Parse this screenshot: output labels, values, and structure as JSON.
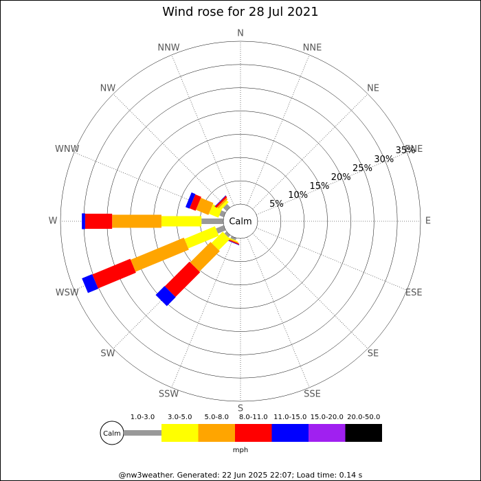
{
  "chart_data": {
    "type": "wind_rose",
    "title": "Wind rose for 28 Jul 2021",
    "directions": [
      "N",
      "NNE",
      "NE",
      "ENE",
      "E",
      "ESE",
      "SE",
      "SSE",
      "S",
      "SSW",
      "SW",
      "WSW",
      "W",
      "WNW",
      "NW",
      "NNW"
    ],
    "rlim": [
      0,
      35
    ],
    "rticks": [
      {
        "value": 5,
        "label": "5%"
      },
      {
        "value": 10,
        "label": "10%"
      },
      {
        "value": 15,
        "label": "15%"
      },
      {
        "value": 20,
        "label": "20%"
      },
      {
        "value": 25,
        "label": "25%"
      },
      {
        "value": 30,
        "label": "30%"
      },
      {
        "value": 35,
        "label": "35%"
      }
    ],
    "calm_label": "Calm",
    "series": [
      {
        "name": "1.0-3.0",
        "color": "#999999",
        "values": [
          0,
          0,
          0,
          0,
          0,
          0,
          0,
          0,
          0,
          0.5,
          0.6,
          1.8,
          4.7,
          1.0,
          1.0,
          0
        ]
      },
      {
        "name": "3.0-5.0",
        "color": "#ffff00",
        "values": [
          0,
          0,
          0,
          0,
          0,
          0,
          0,
          0,
          0,
          0.2,
          3.4,
          7.1,
          8.6,
          2.2,
          0.6,
          0
        ]
      },
      {
        "name": "5.0-8.0",
        "color": "#ffa500",
        "values": [
          0,
          0,
          0,
          0,
          0,
          0,
          0,
          0,
          0,
          0.2,
          6.2,
          12.4,
          10.6,
          2.9,
          0.4,
          0
        ]
      },
      {
        "name": "8.0-11.0",
        "color": "#ff0000",
        "values": [
          0,
          0,
          0,
          0,
          0,
          0,
          0,
          0,
          0,
          0.2,
          7.5,
          8.8,
          5.8,
          1.4,
          0.4,
          0
        ]
      },
      {
        "name": "11.0-15.0",
        "color": "#0000ff",
        "values": [
          0,
          0,
          0,
          0,
          0,
          0,
          0,
          0,
          0,
          0.1,
          2.7,
          2.4,
          0.7,
          0.9,
          0.1,
          0
        ]
      },
      {
        "name": "15.0-20.0",
        "color": "#a020f0",
        "values": [
          0,
          0,
          0,
          0,
          0,
          0,
          0,
          0,
          0,
          0,
          0,
          0,
          0,
          0,
          0,
          0
        ]
      },
      {
        "name": "20.0-50.0",
        "color": "#000000",
        "values": [
          0,
          0,
          0,
          0,
          0,
          0,
          0,
          0,
          0,
          0,
          0,
          0,
          0,
          0,
          0,
          0
        ]
      }
    ],
    "unit": "mph",
    "footer": "@nw3weather. Generated: 22 Jun 2025 22:07; Load time: 0.14 s"
  }
}
